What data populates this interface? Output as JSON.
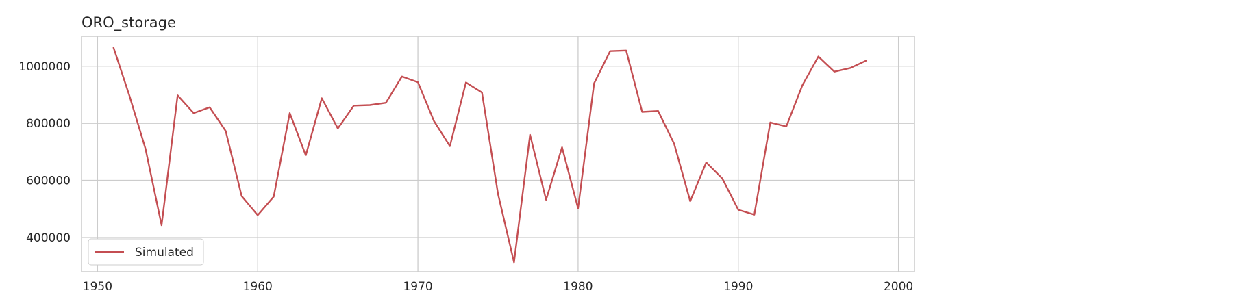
{
  "chart_data": {
    "type": "line",
    "title": "ORO_storage",
    "xlabel": "",
    "ylabel": "",
    "xlim": [
      1949,
      2001
    ],
    "ylim": [
      280000,
      1105000
    ],
    "xticks": [
      1950,
      1960,
      1970,
      1980,
      1990,
      2000
    ],
    "yticks": [
      400000,
      600000,
      800000,
      1000000
    ],
    "grid": true,
    "legend": "lower-left",
    "series": [
      {
        "name": "Simulated",
        "color": "#c44e52",
        "x": [
          1951,
          1952,
          1953,
          1954,
          1955,
          1956,
          1957,
          1958,
          1959,
          1960,
          1961,
          1962,
          1963,
          1964,
          1965,
          1966,
          1967,
          1968,
          1969,
          1970,
          1971,
          1972,
          1973,
          1974,
          1975,
          1976,
          1977,
          1978,
          1979,
          1980,
          1981,
          1982,
          1983,
          1984,
          1985,
          1986,
          1987,
          1988,
          1989,
          1990,
          1991,
          1992,
          1993,
          1994,
          1995,
          1996,
          1997,
          1998
        ],
        "y": [
          1065000,
          895000,
          710000,
          443000,
          898000,
          836000,
          856000,
          773000,
          545000,
          478000,
          543000,
          836000,
          688000,
          888000,
          782000,
          862000,
          864000,
          872000,
          964000,
          944000,
          808000,
          720000,
          943000,
          908000,
          553000,
          313000,
          760000,
          532000,
          716000,
          502000,
          940000,
          1053000,
          1055000,
          840000,
          843000,
          728000,
          527000,
          663000,
          607000,
          497000,
          480000,
          803000,
          789000,
          933000,
          1034000,
          981000,
          994000,
          1020000
        ]
      }
    ]
  }
}
